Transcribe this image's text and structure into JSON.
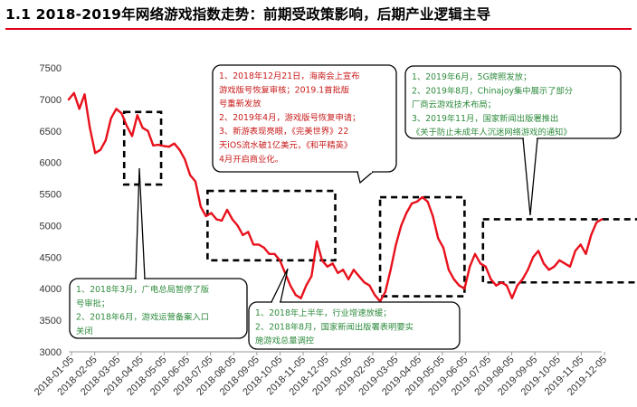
{
  "header": {
    "title": "1.1 2018-2019年网络游戏指数走势：前期受政策影响，后期产业逻辑主导",
    "rule_color": "#e0001b"
  },
  "chart_data": {
    "type": "line",
    "title": "1.1 2018-2019年网络游戏指数走势：前期受政策影响，后期产业逻辑主导",
    "xlabel": "",
    "ylabel": "",
    "ylim": [
      3000,
      7500
    ],
    "yticks": [
      3000,
      3500,
      4000,
      4500,
      5000,
      5500,
      6000,
      6500,
      7000,
      7500
    ],
    "xticks": [
      "2018-01-05",
      "2018-02-05",
      "2018-03-05",
      "2018-04-05",
      "2018-05-05",
      "2018-06-05",
      "2018-07-05",
      "2018-08-05",
      "2018-09-05",
      "2018-10-05",
      "2018-11-05",
      "2018-12-05",
      "2019-01-05",
      "2019-02-05",
      "2019-03-05",
      "2019-04-05",
      "2019-05-05",
      "2019-06-05",
      "2019-07-05",
      "2019-08-05",
      "2019-09-05",
      "2019-10-05",
      "2019-11-05",
      "2019-12-05"
    ],
    "grid": false,
    "legend": "none",
    "line_color": "#e8111c",
    "series": [
      {
        "values": [
          7000,
          7100,
          6850,
          7080,
          6550,
          6150,
          6200,
          6350,
          6700,
          6850,
          6780,
          6580,
          6420,
          6750,
          6550,
          6500,
          6270,
          6280,
          6260,
          6250,
          6300,
          6200,
          6050,
          5800,
          5700,
          5300,
          5150,
          5200,
          5100,
          5080,
          5250,
          5100,
          5000,
          4850,
          4900,
          4700,
          4700,
          4650,
          4550,
          4550,
          4450,
          4250,
          4050,
          3900,
          3850,
          4050,
          4200,
          4750,
          4450,
          4350,
          4400,
          4250,
          4300,
          4150,
          4300,
          4200,
          4100,
          4050,
          3900,
          3800,
          3950,
          4300,
          4700,
          5000,
          5200,
          5350,
          5380,
          5450,
          5380,
          5150,
          4800,
          4650,
          4300,
          4150,
          4050,
          4000,
          4350,
          4550,
          4400,
          4350,
          4150,
          4050,
          4100,
          4050,
          3850,
          4050,
          4150,
          4300,
          4500,
          4600,
          4400,
          4300,
          4350,
          4450,
          4400,
          4350,
          4600,
          4700,
          4550,
          4850,
          5050,
          5100
        ]
      }
    ],
    "boxes": [
      {
        "x_start": 10.5,
        "x_end": 17.5,
        "y_low": 5650,
        "y_high": 6800
      },
      {
        "x_start": 26.3,
        "x_end": 50.5,
        "y_low": 4450,
        "y_high": 5550
      },
      {
        "x_start": 59.0,
        "x_end": 75.0,
        "y_low": 3880,
        "y_high": 5450
      },
      {
        "x_start": 78.5,
        "x_end": 108.5,
        "y_low": 4100,
        "y_high": 5100
      }
    ]
  },
  "annotations": [
    {
      "lines": [
        "1、2018年3月，广电总局暂停了版",
        "号审批；",
        "2、2018年6月，游戏运营备案入口",
        "关闭"
      ],
      "text_color": "#2e8b3d"
    },
    {
      "lines": [
        "1、2018年上半年，行业增速放缓；",
        "2、2018年8月，国家新闻出版署表明要实",
        "施游戏总量调控"
      ],
      "text_color": "#2e8b3d"
    },
    {
      "lines": [
        "1、2018年12月21日，海南会上宣布",
        "游戏版号恢复审核；2019.1首批版",
        "号重新发放",
        "2、2019年4月，游戏版号恢复申请；",
        "3、新游表现亮眼，《完美世界》22",
        "天iOS流水破1亿美元，《和平精英》",
        "4月开启商业化。"
      ],
      "text_color": "#c81a1a"
    },
    {
      "lines": [
        "1、2019年6月，5G牌照发放；",
        "2、2019年8月，Chinajoy集中展示了部分",
        "厂商云游戏技术布局；",
        "3、2019年11月，国家新闻出版署推出",
        "《关于防止未成年人沉迷网络游戏的通知》"
      ],
      "text_color": "#2e8b3d"
    }
  ]
}
